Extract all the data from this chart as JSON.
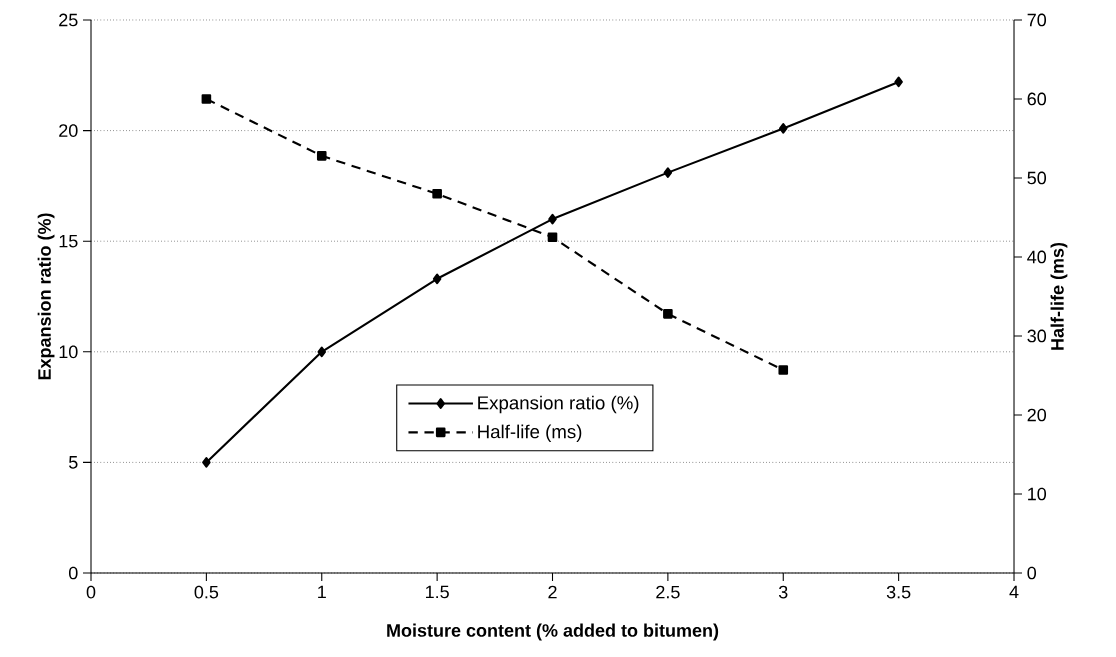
{
  "chart_data": {
    "type": "line",
    "xlabel": "Moisture content (% added to bitumen)",
    "ylabel": "Expansion ratio (%)",
    "y2label": "Half-life (ms)",
    "x": [
      0.5,
      1,
      1.5,
      2,
      2.5,
      3,
      3.5
    ],
    "series": [
      {
        "name": "Expansion ratio (%)",
        "color": "#000000",
        "marker": "diamond",
        "line_style": "solid",
        "values": [
          5.0,
          10.0,
          13.3,
          16.0,
          18.1,
          20.1,
          22.2
        ]
      },
      {
        "name": "Half-life (ms)",
        "color": "#000000",
        "marker": "square",
        "line_style": "dashed",
        "axis": "y2",
        "values": [
          60,
          52.8,
          48.0,
          42.5,
          32.8,
          25.7,
          null
        ]
      }
    ],
    "xlim": [
      0,
      4
    ],
    "xticks": [
      0,
      0.5,
      1,
      1.5,
      2,
      2.5,
      3,
      3.5,
      4
    ],
    "ylim": [
      0,
      25
    ],
    "yticks": [
      0,
      5,
      10,
      15,
      20,
      25
    ],
    "y2lim": [
      0,
      70
    ],
    "y2ticks": [
      0,
      10,
      20,
      30,
      40,
      50,
      60,
      70
    ],
    "grid": "y",
    "legend": "bottom"
  }
}
